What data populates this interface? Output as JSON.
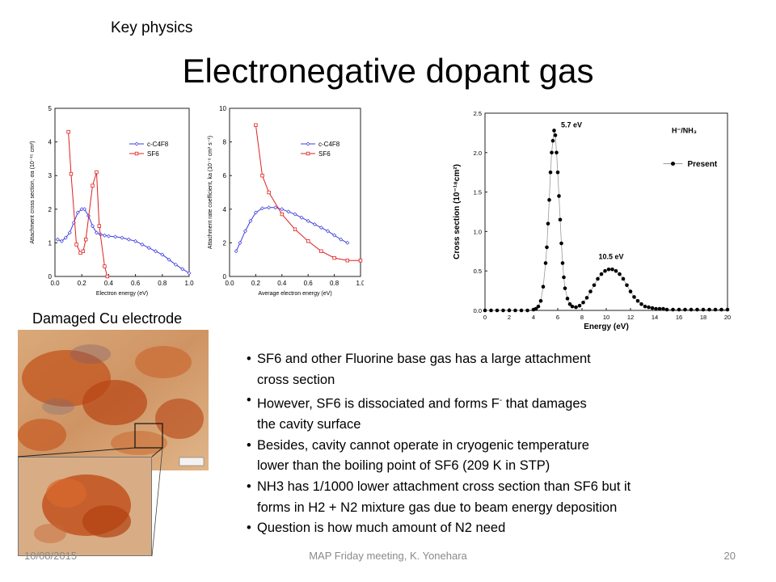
{
  "slide": {
    "kicker": "Key physics",
    "title": "Electronegative dopant gas",
    "photo_label": "Damaged Cu electrode",
    "bullets": [
      {
        "line1": "SF6 and other Fluorine base gas has a large attachment",
        "line2": "cross section"
      },
      {
        "line1a": "However, SF6 is dissociated and forms F",
        "sup": "-",
        "line1b": " that damages",
        "line2": "the cavity surface"
      },
      {
        "line1": "Besides, cavity cannot operate in cryogenic temperature",
        "line2": "lower than the boiling point of SF6 (209 K in STP)"
      },
      {
        "line1": "NH3 has 1/1000 lower attachment cross section than SF6 but it",
        "line2": "forms in H2 + N2 mixture gas due to beam energy deposition"
      },
      {
        "line1": "Question is how much amount of N2 need",
        "line2": ""
      }
    ],
    "footer": {
      "date": "10/08/2015",
      "center": "MAP Friday meeting, K. Yonehara",
      "page": "20"
    }
  },
  "colors": {
    "c4f8": "#3b3bdd",
    "sf6": "#e02020",
    "present": "#000000"
  },
  "chart_data": [
    {
      "type": "line",
      "xlabel": "Electron energy (eV)",
      "ylabel": "Attachment cross section, σa (10⁻¹⁵ cm²)",
      "xlim": [
        0.0,
        1.0
      ],
      "ylim": [
        0,
        5
      ],
      "xticks": [
        "0.0",
        "0.2",
        "0.4",
        "0.6",
        "0.8",
        "1.0"
      ],
      "yticks": [
        "0",
        "1",
        "2",
        "3",
        "4",
        "5"
      ],
      "legend": "top-right",
      "series": [
        {
          "name": "c-C4F8",
          "x": [
            0.02,
            0.05,
            0.08,
            0.11,
            0.14,
            0.17,
            0.2,
            0.22,
            0.25,
            0.28,
            0.31,
            0.34,
            0.37,
            0.4,
            0.45,
            0.5,
            0.55,
            0.6,
            0.65,
            0.7,
            0.75,
            0.8,
            0.85,
            0.9,
            0.95,
            1.0
          ],
          "y": [
            1.1,
            1.05,
            1.15,
            1.3,
            1.6,
            1.9,
            2.0,
            2.0,
            1.8,
            1.5,
            1.3,
            1.25,
            1.22,
            1.2,
            1.18,
            1.15,
            1.1,
            1.05,
            0.95,
            0.85,
            0.75,
            0.65,
            0.5,
            0.35,
            0.22,
            0.1
          ]
        },
        {
          "name": "SF6",
          "x": [
            0.1,
            0.12,
            0.16,
            0.19,
            0.21,
            0.23,
            0.28,
            0.31,
            0.33,
            0.37,
            0.39
          ],
          "y": [
            4.3,
            3.05,
            0.95,
            0.7,
            0.75,
            1.1,
            2.7,
            3.1,
            1.5,
            0.3,
            0.0
          ]
        }
      ]
    },
    {
      "type": "line",
      "xlabel": "Average electron energy (eV)",
      "ylabel": "Attachment rate coefficient, ka (10⁻⁸ cm³ s⁻¹)",
      "xlim": [
        0.0,
        1.0
      ],
      "ylim": [
        0,
        10
      ],
      "xticks": [
        "0.0",
        "0.2",
        "0.4",
        "0.6",
        "0.8",
        "1.0"
      ],
      "yticks": [
        "0",
        "2",
        "4",
        "6",
        "8",
        "10"
      ],
      "legend": "top-right",
      "series": [
        {
          "name": "c-C4F8",
          "x": [
            0.05,
            0.08,
            0.12,
            0.16,
            0.2,
            0.25,
            0.3,
            0.35,
            0.4,
            0.45,
            0.5,
            0.55,
            0.6,
            0.65,
            0.7,
            0.75,
            0.8,
            0.85,
            0.9
          ],
          "y": [
            1.5,
            2.0,
            2.7,
            3.3,
            3.8,
            4.05,
            4.1,
            4.1,
            4.0,
            3.85,
            3.7,
            3.5,
            3.3,
            3.1,
            2.9,
            2.7,
            2.45,
            2.2,
            2.0
          ]
        },
        {
          "name": "SF6",
          "x": [
            0.2,
            0.25,
            0.3,
            0.4,
            0.5,
            0.6,
            0.7,
            0.8,
            0.9,
            1.0
          ],
          "y": [
            9.0,
            6.0,
            5.0,
            3.7,
            2.8,
            2.1,
            1.5,
            1.1,
            0.95,
            0.95
          ]
        }
      ]
    },
    {
      "type": "scatter",
      "title": "H⁻/NH₃",
      "xlabel": "Energy (eV)",
      "ylabel": "Cross section (10⁻¹⁸cm²)",
      "xlim": [
        0,
        20
      ],
      "ylim": [
        0,
        2.5
      ],
      "xticks": [
        "0",
        "2",
        "4",
        "6",
        "8",
        "10",
        "12",
        "14",
        "16",
        "18",
        "20"
      ],
      "yticks": [
        "0.0",
        "0.5",
        "1.0",
        "1.5",
        "2.0",
        "2.5"
      ],
      "legend": "top-right",
      "annotations": [
        "5.7 eV",
        "10.5 eV"
      ],
      "series": [
        {
          "name": "Present",
          "x": [
            0,
            0.5,
            1,
            1.5,
            2,
            2.5,
            3,
            3.5,
            4,
            4.2,
            4.4,
            4.6,
            4.8,
            5.0,
            5.1,
            5.2,
            5.3,
            5.4,
            5.5,
            5.6,
            5.7,
            5.8,
            5.9,
            6.0,
            6.1,
            6.2,
            6.3,
            6.4,
            6.5,
            6.6,
            6.8,
            7.0,
            7.2,
            7.5,
            7.8,
            8.1,
            8.4,
            8.7,
            9.0,
            9.3,
            9.6,
            9.9,
            10.2,
            10.5,
            10.8,
            11.1,
            11.4,
            11.7,
            12.0,
            12.3,
            12.6,
            12.9,
            13.2,
            13.5,
            13.8,
            14.1,
            14.4,
            14.7,
            15,
            15.5,
            16,
            16.5,
            17,
            17.5,
            18,
            18.5,
            19,
            19.5,
            20
          ],
          "y": [
            0,
            0,
            0,
            0,
            0,
            0,
            0,
            0,
            0.01,
            0.02,
            0.05,
            0.12,
            0.3,
            0.6,
            0.8,
            1.1,
            1.4,
            1.75,
            2.0,
            2.15,
            2.28,
            2.22,
            2.0,
            1.75,
            1.45,
            1.15,
            0.85,
            0.6,
            0.42,
            0.28,
            0.15,
            0.08,
            0.05,
            0.04,
            0.06,
            0.1,
            0.16,
            0.24,
            0.32,
            0.4,
            0.46,
            0.5,
            0.52,
            0.52,
            0.5,
            0.46,
            0.4,
            0.32,
            0.24,
            0.17,
            0.12,
            0.08,
            0.05,
            0.04,
            0.03,
            0.02,
            0.02,
            0.02,
            0.01,
            0.01,
            0.01,
            0.01,
            0.01,
            0.01,
            0.01,
            0.01,
            0.01,
            0.01,
            0.01
          ]
        }
      ]
    }
  ]
}
